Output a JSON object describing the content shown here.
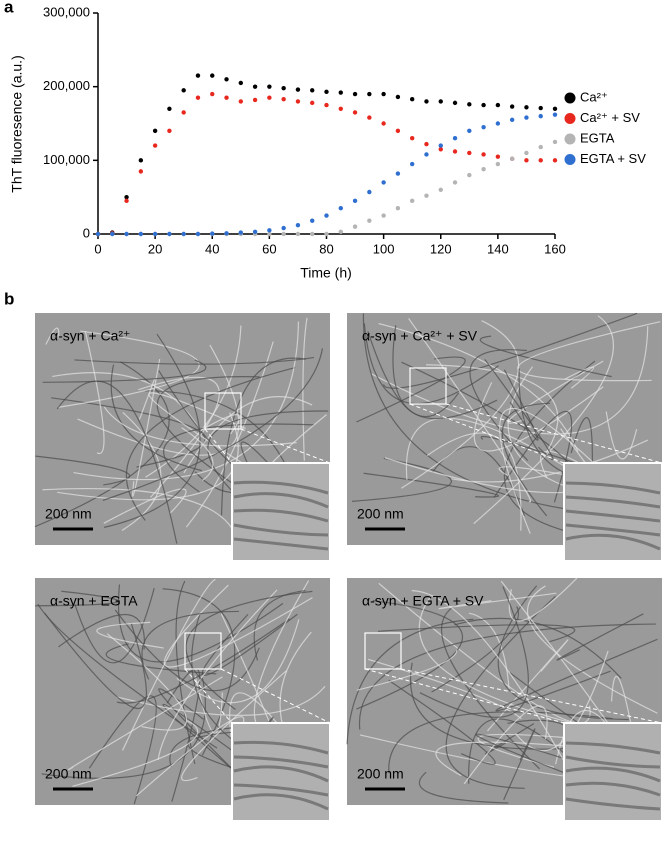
{
  "panel_labels": [
    "a",
    "b"
  ],
  "chart_data": {
    "type": "scatter",
    "xlabel": "Time (h)",
    "ylabel": "ThT fluoresence (a.u.)",
    "x": [
      0,
      5,
      10,
      15,
      20,
      25,
      30,
      35,
      40,
      45,
      50,
      55,
      60,
      65,
      70,
      75,
      80,
      85,
      90,
      95,
      100,
      105,
      110,
      115,
      120,
      125,
      130,
      135,
      140,
      145,
      150,
      155,
      160
    ],
    "series": [
      {
        "name": "Ca²⁺",
        "color": "#000000",
        "values": [
          0,
          2000,
          50000,
          100000,
          140000,
          170000,
          195000,
          215000,
          215000,
          210000,
          205000,
          200000,
          200000,
          198000,
          196000,
          195000,
          193000,
          192000,
          190000,
          190000,
          190000,
          186000,
          183000,
          180000,
          180000,
          178000,
          176000,
          175000,
          175000,
          173000,
          172000,
          171000,
          170000
        ]
      },
      {
        "name": "Ca²⁺ + SV",
        "color": "#e8281e",
        "values": [
          0,
          1000,
          45000,
          85000,
          120000,
          140000,
          165000,
          185000,
          190000,
          185000,
          180000,
          182000,
          185000,
          183000,
          180000,
          178000,
          175000,
          170000,
          165000,
          158000,
          150000,
          140000,
          130000,
          122000,
          115000,
          112000,
          110000,
          108000,
          105000,
          102000,
          100000,
          100000,
          100000
        ]
      },
      {
        "name": "EGTA",
        "color": "#b4b4b4",
        "values": [
          0,
          0,
          0,
          0,
          0,
          0,
          0,
          0,
          0,
          0,
          0,
          0,
          0,
          0,
          0,
          0,
          0,
          3000,
          10000,
          18000,
          25000,
          35000,
          45000,
          52000,
          60000,
          70000,
          80000,
          88000,
          95000,
          102000,
          110000,
          118000,
          125000
        ]
      },
      {
        "name": "EGTA + SV",
        "color": "#2f6fd0",
        "values": [
          0,
          0,
          0,
          0,
          0,
          0,
          0,
          0,
          500,
          1000,
          2000,
          3000,
          5000,
          8000,
          12000,
          18000,
          25000,
          35000,
          45000,
          57000,
          70000,
          82000,
          95000,
          108000,
          120000,
          130000,
          140000,
          145000,
          150000,
          155000,
          158000,
          160000,
          162000
        ]
      }
    ],
    "xlim": [
      0,
      160
    ],
    "xticks": [
      0,
      20,
      40,
      60,
      80,
      100,
      120,
      140,
      160
    ],
    "ylim": [
      0,
      300000
    ],
    "yticks": [
      0,
      {
        "value": 100000,
        "label": "100,000"
      },
      {
        "value": 200000,
        "label": "200,000"
      },
      {
        "value": 300000,
        "label": "300,000"
      }
    ]
  },
  "micrographs": [
    {
      "label": "α-syn + Ca²⁺",
      "scale_bar": "200 nm"
    },
    {
      "label": "α-syn + Ca²⁺ + SV",
      "scale_bar": "200 nm"
    },
    {
      "label": "α-syn + EGTA",
      "scale_bar": "200 nm"
    },
    {
      "label": "α-syn + EGTA + SV",
      "scale_bar": "200 nm"
    }
  ]
}
